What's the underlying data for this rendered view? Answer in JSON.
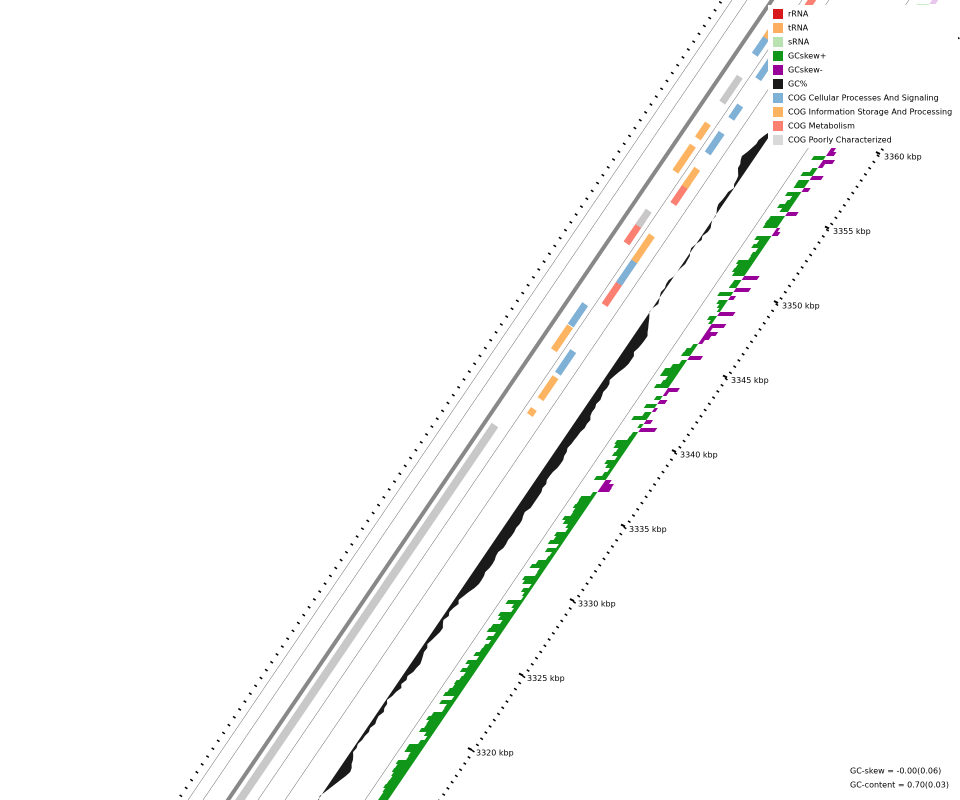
{
  "legend": [
    {
      "label": "rRNA",
      "color": "#d7191c"
    },
    {
      "label": "tRNA",
      "color": "#fdae61"
    },
    {
      "label": "sRNA",
      "color": "#b8e3b0"
    },
    {
      "label": "GCskew+",
      "color": "#109618"
    },
    {
      "label": "GCskew-",
      "color": "#990099"
    },
    {
      "label": "GC%",
      "color": "#1a1a1a"
    },
    {
      "label": "COG Cellular Processes And Signaling",
      "color": "#7fb0d6"
    },
    {
      "label": "COG Information Storage And Processing",
      "color": "#fdb462"
    },
    {
      "label": "COG Metabolism",
      "color": "#fb8072"
    },
    {
      "label": "COG Poorly Characterized",
      "color": "#d9d9d9"
    }
  ],
  "ruler_labels": [
    "3320 kbp",
    "3325 kbp",
    "3330 kbp",
    "3335 kbp",
    "3340 kbp",
    "3345 kbp",
    "3350 kbp",
    "3355 kbp",
    "3360 kbp"
  ],
  "footer": [
    "GC-skew = -0.00(0.06)",
    "GC-content = 0.70(0.03)"
  ]
}
